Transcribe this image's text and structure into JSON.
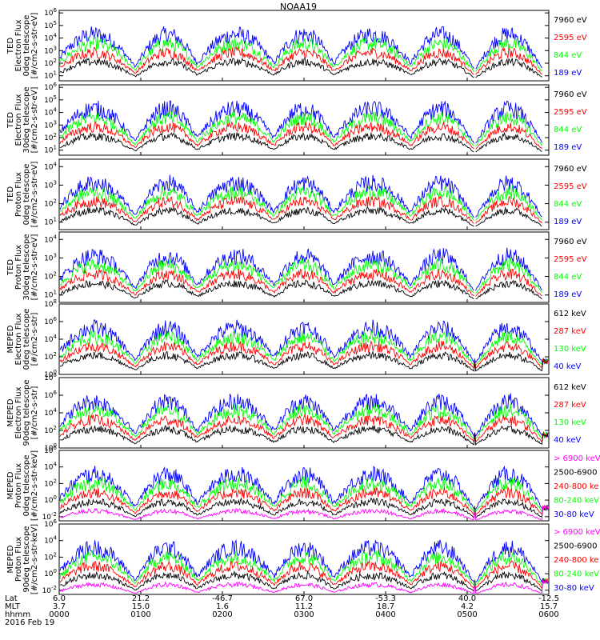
{
  "title": "NOAA19",
  "colors": {
    "blue": "#0000ff",
    "red": "#ff0000",
    "green": "#00ff00",
    "black": "#000000",
    "magenta": "#ff00ff"
  },
  "chart_data": [
    {
      "type": "line",
      "ylabel": [
        "TED",
        "Electron Flux",
        "0deg telescope",
        "[#/cm2-s-str-eV]"
      ],
      "ytick_exp": [
        1,
        2,
        3,
        4,
        5,
        6
      ],
      "ylim_exp": [
        0.6,
        6.2
      ],
      "legend": [
        {
          "name": "7960 eV",
          "color": "black"
        },
        {
          "name": "2595 eV",
          "color": "red"
        },
        {
          "name": "844 eV",
          "color": "green"
        },
        {
          "name": "189 eV",
          "color": "blue"
        }
      ]
    },
    {
      "type": "line",
      "ylabel": [
        "TED",
        "Electron Flux",
        "30deg telescope",
        "[#/cm2-s-str-eV]"
      ],
      "ytick_exp": [
        1,
        2,
        3,
        4,
        5,
        6
      ],
      "ylim_exp": [
        0.6,
        6.2
      ],
      "legend": [
        {
          "name": "7960 eV",
          "color": "black"
        },
        {
          "name": "2595 eV",
          "color": "red"
        },
        {
          "name": "844 eV",
          "color": "green"
        },
        {
          "name": "189 eV",
          "color": "blue"
        }
      ]
    },
    {
      "type": "line",
      "ylabel": [
        "TED",
        "Proton Flux",
        "0deg telescope",
        "[#/cm2-s-str-eV]"
      ],
      "ytick_exp": [
        1,
        2,
        3,
        4
      ],
      "ylim_exp": [
        0.6,
        4.4
      ],
      "legend": [
        {
          "name": "7960 eV",
          "color": "black"
        },
        {
          "name": "2595 eV",
          "color": "red"
        },
        {
          "name": "844 eV",
          "color": "green"
        },
        {
          "name": "189 eV",
          "color": "blue"
        }
      ]
    },
    {
      "type": "line",
      "ylabel": [
        "TED",
        "Proton Flux",
        "30deg telescope",
        "[#/cm2-s-str-eV]"
      ],
      "ytick_exp": [
        1,
        2,
        3,
        4
      ],
      "ylim_exp": [
        0.6,
        4.4
      ],
      "legend": [
        {
          "name": "7960 eV",
          "color": "black"
        },
        {
          "name": "2595 eV",
          "color": "red"
        },
        {
          "name": "844 eV",
          "color": "green"
        },
        {
          "name": "189 eV",
          "color": "blue"
        }
      ]
    },
    {
      "type": "line",
      "ylabel": [
        "MEPED",
        "Electron Flux",
        "0deg telescope",
        "[#/cm2-s-str]"
      ],
      "ytick_exp": [
        0,
        2,
        4,
        6,
        8
      ],
      "ylim_exp": [
        0,
        8
      ],
      "legend": [
        {
          "name": "612 keV",
          "color": "black"
        },
        {
          "name": "287 keV",
          "color": "red"
        },
        {
          "name": "130 keV",
          "color": "green"
        },
        {
          "name": "40 keV",
          "color": "blue"
        }
      ]
    },
    {
      "type": "line",
      "ylabel": [
        "MEPED",
        "Electron Flux",
        "90deg telescope",
        "[#/cm2-s-str]"
      ],
      "ytick_exp": [
        0,
        2,
        4,
        6,
        8
      ],
      "ylim_exp": [
        0,
        8
      ],
      "legend": [
        {
          "name": "612 keV",
          "color": "black"
        },
        {
          "name": "287 keV",
          "color": "red"
        },
        {
          "name": "130 keV",
          "color": "green"
        },
        {
          "name": "40 keV",
          "color": "blue"
        }
      ]
    },
    {
      "type": "line",
      "ylabel": [
        "MEPED",
        "Proton Flux",
        "0deg telescope",
        "[#/cm2-s-str-keV]"
      ],
      "ytick_exp": [
        -2,
        0,
        2,
        4,
        6
      ],
      "ylim_exp": [
        -2.5,
        6
      ],
      "legend": [
        {
          "name": "> 6900 keV",
          "color": "magenta"
        },
        {
          "name": "2500-6900",
          "color": "black"
        },
        {
          "name": "240-800 ke",
          "color": "red"
        },
        {
          "name": "80-240 keV",
          "color": "green"
        },
        {
          "name": "30-80 keV",
          "color": "blue"
        }
      ]
    },
    {
      "type": "line",
      "ylabel": [
        "MEPED",
        "Proton Flux",
        "90deg telescope",
        "[#/cm2-s-str-keV]"
      ],
      "ytick_exp": [
        -2,
        0,
        2,
        4,
        6
      ],
      "ylim_exp": [
        -2.5,
        6
      ],
      "legend": [
        {
          "name": "> 6900 keV",
          "color": "magenta"
        },
        {
          "name": "2500-6900",
          "color": "black"
        },
        {
          "name": "240-800 ke",
          "color": "red"
        },
        {
          "name": "80-240 keV",
          "color": "green"
        },
        {
          "name": "30-80 keV",
          "color": "blue"
        }
      ]
    }
  ],
  "xaxis": {
    "row_labels": [
      "Lat",
      "MLT",
      "hhmm"
    ],
    "date": "2016 Feb 19",
    "ticks": [
      {
        "lat": "6.0",
        "mlt": "3.7",
        "hhmm": "0000"
      },
      {
        "lat": "21.2",
        "mlt": "15.0",
        "hhmm": "0100"
      },
      {
        "lat": "-46.7",
        "mlt": "1.6",
        "hhmm": "0200"
      },
      {
        "lat": "67.0",
        "mlt": "11.2",
        "hhmm": "0300"
      },
      {
        "lat": "-53.3",
        "mlt": "18.7",
        "hhmm": "0400"
      },
      {
        "lat": "40.0",
        "mlt": "4.2",
        "hhmm": "0500"
      },
      {
        "lat": "-12.5",
        "mlt": "15.7",
        "hhmm": "0600"
      }
    ]
  }
}
